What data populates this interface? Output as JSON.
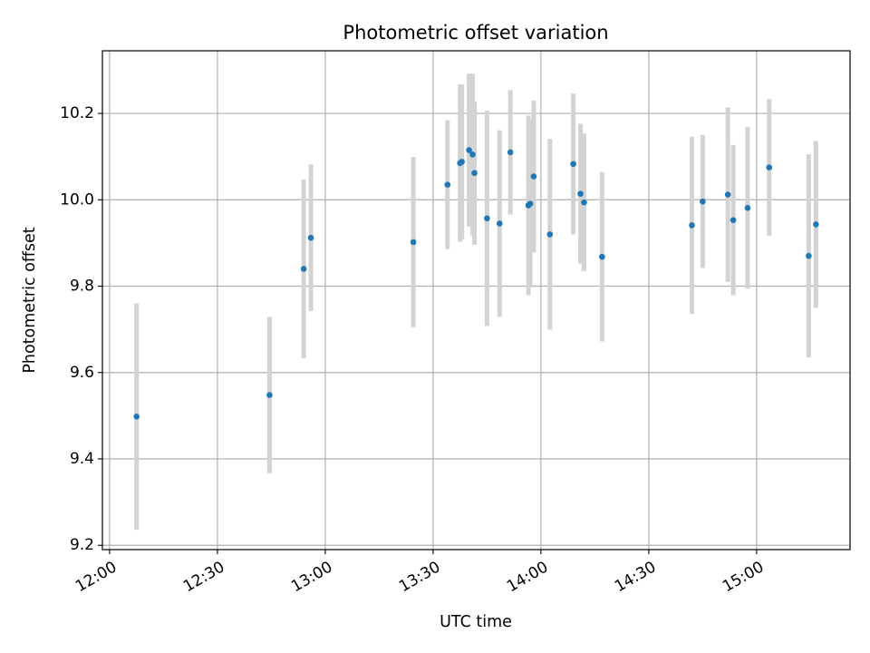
{
  "chart_data": {
    "type": "scatter",
    "title": "Photometric offset variation",
    "xlabel": "UTC time",
    "ylabel": "Photometric offset",
    "xlim": [
      "11:58",
      "15:26"
    ],
    "ylim": [
      9.19,
      10.345
    ],
    "grid": true,
    "x_ticks": [
      "12:00",
      "12:30",
      "13:00",
      "13:30",
      "14:00",
      "14:30",
      "15:00"
    ],
    "y_ticks": [
      "9.2",
      "9.4",
      "9.6",
      "9.8",
      "10.0",
      "10.2"
    ],
    "series": [
      {
        "marker_color": "#1f77b4",
        "errorbar_color": "#d3d3d3",
        "points": [
          {
            "x": "12:07:30",
            "y": 9.498,
            "err": 0.262
          },
          {
            "x": "12:44:30",
            "y": 9.548,
            "err": 0.181
          },
          {
            "x": "12:54:00",
            "y": 9.84,
            "err": 0.207
          },
          {
            "x": "12:56:00",
            "y": 9.912,
            "err": 0.17
          },
          {
            "x": "13:24:30",
            "y": 9.902,
            "err": 0.197
          },
          {
            "x": "13:34:00",
            "y": 10.035,
            "err": 0.149
          },
          {
            "x": "13:37:30",
            "y": 10.085,
            "err": 0.182
          },
          {
            "x": "13:38:00",
            "y": 10.088,
            "err": 0.179
          },
          {
            "x": "13:40:00",
            "y": 10.115,
            "err": 0.177
          },
          {
            "x": "13:41:00",
            "y": 10.105,
            "err": 0.187
          },
          {
            "x": "13:41:30",
            "y": 10.062,
            "err": 0.166
          },
          {
            "x": "13:45:00",
            "y": 9.957,
            "err": 0.249
          },
          {
            "x": "13:48:30",
            "y": 9.945,
            "err": 0.216
          },
          {
            "x": "13:51:30",
            "y": 10.11,
            "err": 0.144
          },
          {
            "x": "13:56:30",
            "y": 9.987,
            "err": 0.208
          },
          {
            "x": "13:57:00",
            "y": 9.991,
            "err": 0.194
          },
          {
            "x": "13:58:00",
            "y": 10.054,
            "err": 0.176
          },
          {
            "x": "14:02:30",
            "y": 9.92,
            "err": 0.221
          },
          {
            "x": "14:09:00",
            "y": 10.083,
            "err": 0.163
          },
          {
            "x": "14:11:00",
            "y": 10.014,
            "err": 0.162
          },
          {
            "x": "14:12:00",
            "y": 9.994,
            "err": 0.159
          },
          {
            "x": "14:17:00",
            "y": 9.868,
            "err": 0.196
          },
          {
            "x": "14:42:00",
            "y": 9.941,
            "err": 0.205
          },
          {
            "x": "14:45:00",
            "y": 9.996,
            "err": 0.154
          },
          {
            "x": "14:52:00",
            "y": 10.012,
            "err": 0.202
          },
          {
            "x": "14:53:30",
            "y": 9.953,
            "err": 0.174
          },
          {
            "x": "14:57:30",
            "y": 9.981,
            "err": 0.187
          },
          {
            "x": "15:03:30",
            "y": 10.075,
            "err": 0.158
          },
          {
            "x": "15:14:30",
            "y": 9.87,
            "err": 0.235
          },
          {
            "x": "15:16:30",
            "y": 9.943,
            "err": 0.193
          }
        ]
      }
    ]
  }
}
